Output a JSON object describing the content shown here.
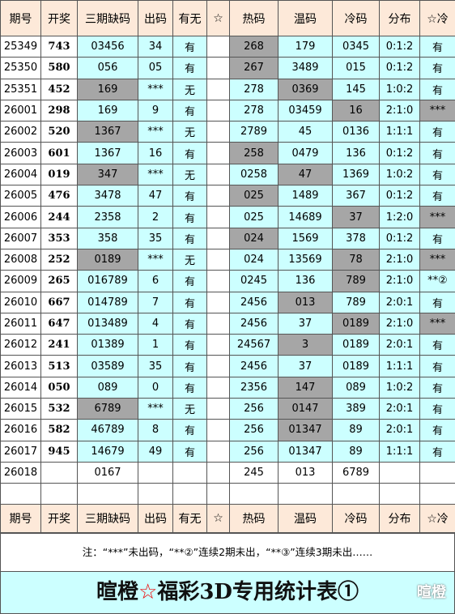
{
  "header": [
    "期号",
    "开奖",
    "三期缺码",
    "出码",
    "有无",
    "☆",
    "热码",
    "温码",
    "冷码",
    "分布",
    "☆冷"
  ],
  "rows": [
    {
      "cells": [
        "25349",
        "743",
        "03456",
        "34",
        "有",
        "",
        "268",
        "179",
        "0345",
        "0:1:2",
        "有"
      ],
      "highlight": [
        6
      ]
    },
    {
      "cells": [
        "25350",
        "580",
        "056",
        "05",
        "有",
        "",
        "267",
        "3489",
        "015",
        "0:1:2",
        "有"
      ],
      "highlight": [
        6
      ]
    },
    {
      "cells": [
        "25351",
        "452",
        "169",
        "***",
        "无",
        "",
        "278",
        "0369",
        "145",
        "1:0:2",
        "有"
      ],
      "highlight": [
        2,
        7
      ]
    },
    {
      "cells": [
        "26001",
        "298",
        "169",
        "9",
        "有",
        "",
        "278",
        "03459",
        "16",
        "2:1:0",
        "***"
      ],
      "highlight": [
        8,
        10
      ]
    },
    {
      "cells": [
        "26002",
        "520",
        "1367",
        "***",
        "无",
        "",
        "2789",
        "45",
        "0136",
        "1:1:1",
        "有"
      ],
      "highlight": [
        2
      ]
    },
    {
      "cells": [
        "26003",
        "601",
        "1367",
        "16",
        "有",
        "",
        "258",
        "0479",
        "136",
        "0:1:2",
        "有"
      ],
      "highlight": [
        6
      ]
    },
    {
      "cells": [
        "26004",
        "019",
        "347",
        "***",
        "无",
        "",
        "0258",
        "47",
        "1369",
        "1:0:2",
        "有"
      ],
      "highlight": [
        2,
        7
      ]
    },
    {
      "cells": [
        "26005",
        "476",
        "3478",
        "47",
        "有",
        "",
        "025",
        "1489",
        "367",
        "0:1:2",
        "有"
      ],
      "highlight": [
        6
      ]
    },
    {
      "cells": [
        "26006",
        "244",
        "2358",
        "2",
        "有",
        "",
        "025",
        "14689",
        "37",
        "1:2:0",
        "***"
      ],
      "highlight": [
        8,
        10
      ]
    },
    {
      "cells": [
        "26007",
        "353",
        "358",
        "35",
        "有",
        "",
        "024",
        "1569",
        "378",
        "0:1:2",
        "有"
      ],
      "highlight": [
        6
      ]
    },
    {
      "cells": [
        "26008",
        "252",
        "0189",
        "***",
        "无",
        "",
        "024",
        "13569",
        "78",
        "2:1:0",
        "***"
      ],
      "highlight": [
        2,
        8,
        10
      ]
    },
    {
      "cells": [
        "26009",
        "265",
        "016789",
        "6",
        "有",
        "",
        "0245",
        "136",
        "789",
        "2:1:0",
        "**②"
      ],
      "highlight": [
        8
      ]
    },
    {
      "cells": [
        "26010",
        "667",
        "014789",
        "7",
        "有",
        "",
        "2456",
        "013",
        "789",
        "2:0:1",
        "有"
      ],
      "highlight": [
        7
      ]
    },
    {
      "cells": [
        "26011",
        "647",
        "013489",
        "4",
        "有",
        "",
        "2456",
        "37",
        "0189",
        "2:1:0",
        "***"
      ],
      "highlight": [
        8,
        10
      ]
    },
    {
      "cells": [
        "26012",
        "241",
        "01389",
        "1",
        "有",
        "",
        "24567",
        "3",
        "0189",
        "2:0:1",
        "有"
      ],
      "highlight": [
        7
      ]
    },
    {
      "cells": [
        "26013",
        "513",
        "03589",
        "35",
        "有",
        "",
        "2456",
        "37",
        "0189",
        "1:1:1",
        "有"
      ],
      "highlight": []
    },
    {
      "cells": [
        "26014",
        "050",
        "089",
        "0",
        "有",
        "",
        "2356",
        "147",
        "089",
        "1:0:2",
        "有"
      ],
      "highlight": [
        7
      ]
    },
    {
      "cells": [
        "26015",
        "532",
        "6789",
        "***",
        "无",
        "",
        "256",
        "0147",
        "389",
        "2:0:1",
        "有"
      ],
      "highlight": [
        2,
        7
      ]
    },
    {
      "cells": [
        "26016",
        "582",
        "46789",
        "8",
        "有",
        "",
        "256",
        "01347",
        "89",
        "2:0:1",
        "有"
      ],
      "highlight": [
        7
      ]
    },
    {
      "cells": [
        "26017",
        "945",
        "14679",
        "49",
        "有",
        "",
        "256",
        "01347",
        "89",
        "1:1:1",
        "有"
      ],
      "highlight": []
    },
    {
      "cells": [
        "26018",
        "",
        "0167",
        "",
        "",
        "",
        "245",
        "013",
        "6789",
        "",
        ""
      ],
      "highlight": []
    }
  ],
  "note": "注：“***”未出码，“**②”连续2期未出，“**③”连续3期未出……",
  "title": {
    "name": "暄橙",
    "star": "☆",
    "text": "福彩3D专用统计表①",
    "watermark": "暄橙"
  }
}
